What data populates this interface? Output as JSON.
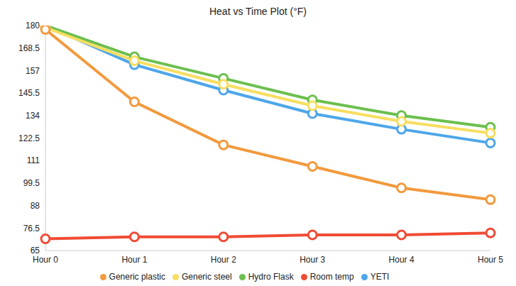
{
  "chart_data": {
    "type": "line",
    "title": "Heat vs Time Plot (°F)",
    "categories": [
      "Hour 0",
      "Hour 1",
      "Hour 2",
      "Hour 3",
      "Hour 4",
      "Hour 5"
    ],
    "series": [
      {
        "name": "YETI",
        "color": "#4ea6ea",
        "values": [
          180,
          160,
          147,
          135,
          127,
          120
        ]
      },
      {
        "name": "Hydro Flask",
        "color": "#6cbf4e",
        "values": [
          180,
          164,
          153,
          142,
          134,
          128
        ]
      },
      {
        "name": "Generic steel",
        "color": "#f7de60",
        "values": [
          179,
          162,
          150,
          139,
          131,
          125
        ]
      },
      {
        "name": "Generic plastic",
        "color": "#f29a3e",
        "values": [
          178,
          141,
          119,
          108,
          97,
          91
        ]
      },
      {
        "name": "Room temp",
        "color": "#f04b34",
        "values": [
          71,
          72,
          72,
          73,
          73,
          74
        ]
      }
    ],
    "ylim": [
      65,
      180
    ],
    "yticks": [
      65,
      76.5,
      88,
      99.5,
      111,
      122.5,
      134,
      145.5,
      157,
      168.5,
      180
    ],
    "grid": false,
    "legend": "bottom",
    "marker": "circle"
  }
}
